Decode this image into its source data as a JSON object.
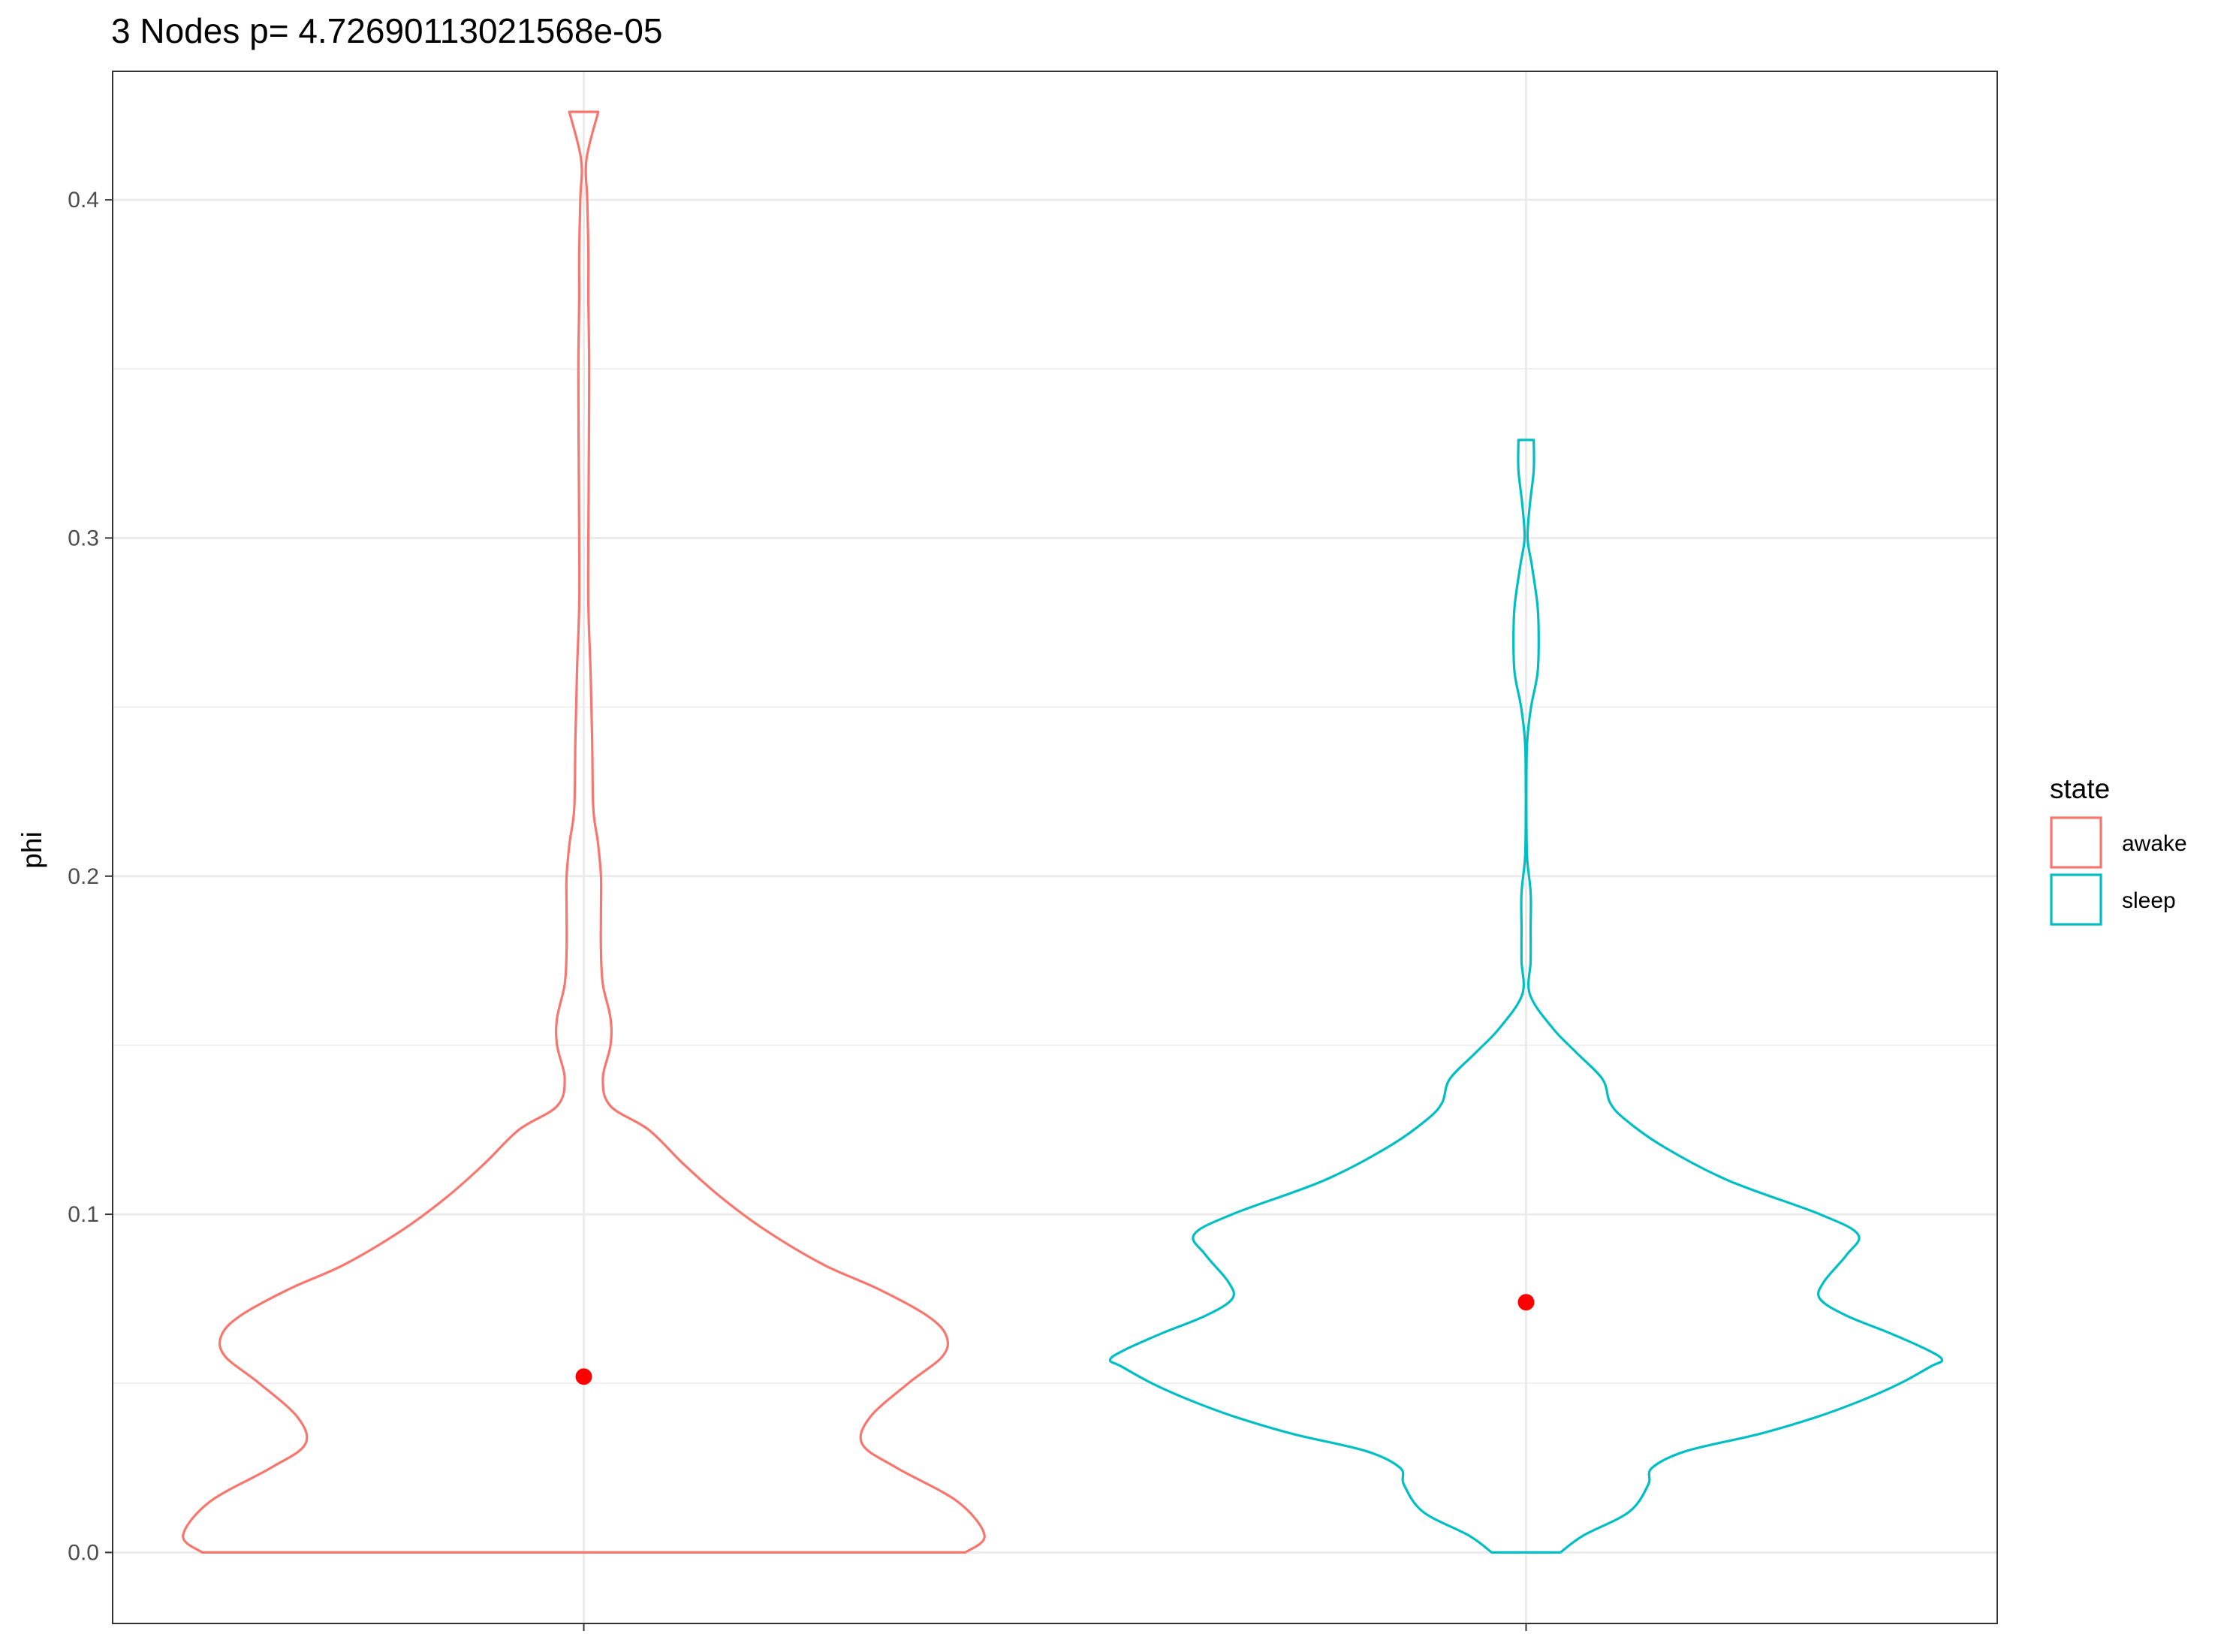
{
  "chart_data": {
    "type": "violin",
    "title": "3 Nodes p= 4.72690113021568e-05",
    "xlabel": "",
    "ylabel": "phi",
    "ylim": [
      -0.021,
      0.438
    ],
    "yticks": [
      0.0,
      0.1,
      0.2,
      0.3,
      0.4
    ],
    "ytick_labels": [
      "0.0",
      "0.1",
      "0.2",
      "0.3",
      "0.4"
    ],
    "grid": true,
    "theme": "bw",
    "legend": {
      "title": "state",
      "position": "right",
      "entries": [
        {
          "label": "awake",
          "color": "#F8766D"
        },
        {
          "label": "sleep",
          "color": "#00BFC4"
        }
      ]
    },
    "groups": [
      "awake",
      "sleep"
    ],
    "series": [
      {
        "name": "awake",
        "color": "#F8766D",
        "range": [
          0.0,
          0.426
        ],
        "mean": 0.052,
        "density_profile": [
          [
            0.0,
            1.0
          ],
          [
            0.005,
            1.05
          ],
          [
            0.015,
            0.98
          ],
          [
            0.025,
            0.82
          ],
          [
            0.032,
            0.73
          ],
          [
            0.04,
            0.75
          ],
          [
            0.05,
            0.85
          ],
          [
            0.058,
            0.94
          ],
          [
            0.064,
            0.95
          ],
          [
            0.07,
            0.9
          ],
          [
            0.078,
            0.77
          ],
          [
            0.085,
            0.63
          ],
          [
            0.095,
            0.48
          ],
          [
            0.105,
            0.36
          ],
          [
            0.115,
            0.26
          ],
          [
            0.125,
            0.17
          ],
          [
            0.132,
            0.07
          ],
          [
            0.14,
            0.05
          ],
          [
            0.15,
            0.07
          ],
          [
            0.158,
            0.07
          ],
          [
            0.168,
            0.05
          ],
          [
            0.178,
            0.045
          ],
          [
            0.19,
            0.045
          ],
          [
            0.2,
            0.045
          ],
          [
            0.21,
            0.037
          ],
          [
            0.22,
            0.025
          ],
          [
            0.24,
            0.022
          ],
          [
            0.26,
            0.018
          ],
          [
            0.28,
            0.012
          ],
          [
            0.3,
            0.012
          ],
          [
            0.32,
            0.013
          ],
          [
            0.34,
            0.014
          ],
          [
            0.355,
            0.014
          ],
          [
            0.37,
            0.012
          ],
          [
            0.385,
            0.012
          ],
          [
            0.4,
            0.009
          ],
          [
            0.412,
            0.007
          ],
          [
            0.426,
            0.038
          ]
        ]
      },
      {
        "name": "sleep",
        "color": "#00BFC4",
        "range": [
          0.0,
          0.329
        ],
        "mean": 0.074,
        "density_profile": [
          [
            0.0,
            0.09
          ],
          [
            0.005,
            0.15
          ],
          [
            0.012,
            0.27
          ],
          [
            0.02,
            0.32
          ],
          [
            0.025,
            0.33
          ],
          [
            0.03,
            0.42
          ],
          [
            0.035,
            0.61
          ],
          [
            0.04,
            0.76
          ],
          [
            0.045,
            0.88
          ],
          [
            0.05,
            0.98
          ],
          [
            0.055,
            1.06
          ],
          [
            0.057,
            1.09
          ],
          [
            0.06,
            1.05
          ],
          [
            0.065,
            0.95
          ],
          [
            0.07,
            0.84
          ],
          [
            0.075,
            0.77
          ],
          [
            0.08,
            0.78
          ],
          [
            0.088,
            0.84
          ],
          [
            0.094,
            0.87
          ],
          [
            0.1,
            0.77
          ],
          [
            0.11,
            0.53
          ],
          [
            0.12,
            0.36
          ],
          [
            0.128,
            0.26
          ],
          [
            0.133,
            0.22
          ],
          [
            0.14,
            0.2
          ],
          [
            0.148,
            0.13
          ],
          [
            0.155,
            0.07
          ],
          [
            0.165,
            0.01
          ],
          [
            0.175,
            0.012
          ],
          [
            0.185,
            0.012
          ],
          [
            0.195,
            0.012
          ],
          [
            0.205,
            0.003
          ],
          [
            0.215,
            0.001
          ],
          [
            0.23,
            0.001
          ],
          [
            0.24,
            0.003
          ],
          [
            0.25,
            0.013
          ],
          [
            0.26,
            0.03
          ],
          [
            0.27,
            0.033
          ],
          [
            0.28,
            0.03
          ],
          [
            0.292,
            0.015
          ],
          [
            0.3,
            0.004
          ],
          [
            0.31,
            0.01
          ],
          [
            0.32,
            0.02
          ],
          [
            0.329,
            0.02
          ]
        ]
      }
    ]
  }
}
